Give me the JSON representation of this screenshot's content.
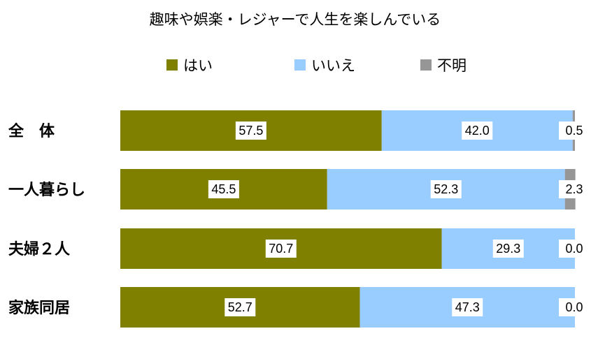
{
  "chart_data": {
    "type": "bar",
    "orientation": "horizontal",
    "stacked": true,
    "percent": true,
    "title": "趣味や娯楽・レジャーで人生を楽しんでいる",
    "categories": [
      "全　体",
      "一人暮らし",
      "夫婦２人",
      "家族同居"
    ],
    "series": [
      {
        "name": "はい",
        "color": "#808000",
        "values": [
          57.5,
          45.5,
          70.7,
          52.7
        ],
        "labels": [
          "57.5",
          "45.5",
          "70.7",
          "52.7"
        ]
      },
      {
        "name": "いいえ",
        "color": "#99ccff",
        "values": [
          42.0,
          52.3,
          29.3,
          47.3
        ],
        "labels": [
          "42.0",
          "52.3",
          "29.3",
          "47.3"
        ]
      },
      {
        "name": "不明",
        "color": "#969696",
        "values": [
          0.5,
          2.3,
          0.0,
          0.0
        ],
        "labels": [
          "0.5",
          "2.3",
          "0.0",
          "0.0"
        ]
      }
    ],
    "xlim": [
      0,
      100
    ],
    "grid": false,
    "legend_position": "top"
  }
}
